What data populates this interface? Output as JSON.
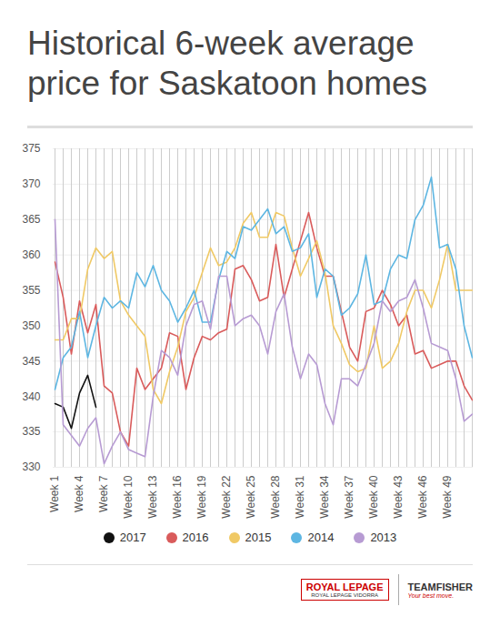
{
  "chart_data": {
    "type": "line",
    "title": "Historical 6-week average price for Saskatoon homes",
    "categories": [
      "Week 1",
      null,
      null,
      "Week 4",
      null,
      null,
      "Week 7",
      null,
      null,
      "Week 10",
      null,
      null,
      "Week 13",
      null,
      null,
      "Week 16",
      null,
      null,
      "Week 19",
      null,
      null,
      "Week 22",
      null,
      null,
      "Week 25",
      null,
      null,
      "Week 28",
      null,
      null,
      "Week 31",
      null,
      null,
      "Week 34",
      null,
      null,
      "Week 37",
      null,
      null,
      "Week 40",
      null,
      null,
      "Week 43",
      null,
      null,
      "Week 46",
      null,
      null,
      "Week 49",
      null,
      null,
      null
    ],
    "series": [
      {
        "name": "2017",
        "color": "#111111",
        "values": [
          339,
          338.5,
          335.5,
          340.5,
          343,
          338.5,
          null,
          null,
          null,
          null,
          null,
          null,
          null,
          null,
          null,
          null,
          null,
          null,
          null,
          null,
          null,
          null,
          null,
          null,
          null,
          null,
          null,
          null,
          null,
          null,
          null,
          null,
          null,
          null,
          null,
          null,
          null,
          null,
          null,
          null,
          null,
          null,
          null,
          null,
          null,
          null,
          null,
          null,
          null,
          null,
          null,
          null
        ]
      },
      {
        "name": "2016",
        "color": "#d95b5b",
        "values": [
          359,
          354,
          346,
          353.5,
          349,
          353,
          341.5,
          340.5,
          335,
          333,
          344,
          341,
          342.5,
          344,
          349,
          348.5,
          341,
          345.5,
          348.5,
          348,
          349,
          349.5,
          358,
          358.5,
          356.5,
          353.5,
          354,
          361.5,
          354,
          358,
          362,
          366,
          361,
          357,
          357,
          352,
          347,
          345,
          352,
          352.5,
          355,
          353,
          350,
          351.5,
          346,
          346.5,
          344,
          344.5,
          345,
          345,
          341.5,
          339.5
        ]
      },
      {
        "name": "2015",
        "color": "#f0c965",
        "values": [
          348,
          348,
          351,
          351,
          358,
          361,
          359.5,
          360.5,
          353.5,
          351.5,
          350,
          348.5,
          341,
          339,
          343.5,
          347,
          352,
          354,
          357.5,
          361,
          358.5,
          359,
          361,
          364.5,
          366,
          362.5,
          362.5,
          366,
          365.5,
          361,
          357,
          359.5,
          362,
          357.5,
          350,
          347.5,
          344.5,
          343.5,
          344,
          350,
          344,
          345,
          347.5,
          352,
          355,
          355,
          352.5,
          356.5,
          361.5,
          355,
          355,
          355
        ]
      },
      {
        "name": "2014",
        "color": "#5db6e2",
        "values": [
          341,
          345.5,
          347,
          352,
          345.5,
          350,
          354,
          352.5,
          353.5,
          352.5,
          357.5,
          355.5,
          358.5,
          355,
          353.5,
          350.5,
          352.5,
          355,
          350.5,
          350.5,
          356.5,
          360.5,
          359.5,
          364,
          363.5,
          365,
          366.5,
          363,
          364,
          360.5,
          361,
          363,
          354,
          358,
          357,
          351.5,
          352.5,
          354.5,
          360,
          353,
          353.5,
          358,
          360,
          359.5,
          365,
          367,
          371,
          361,
          361.5,
          358,
          350,
          345.5
        ]
      },
      {
        "name": "2013",
        "color": "#b79bd3",
        "values": [
          365,
          336,
          334.5,
          333,
          335.5,
          337,
          330.5,
          333,
          335,
          332.5,
          332,
          331.5,
          340,
          346.5,
          345.5,
          343,
          350,
          353,
          353.5,
          349.5,
          357,
          357,
          350,
          351,
          351.5,
          350,
          346,
          352,
          354.5,
          347,
          342.5,
          346,
          344.5,
          339,
          336,
          342.5,
          342.5,
          341.5,
          344.5,
          347.5,
          353.5,
          352,
          353.5,
          354,
          356.5,
          352.5,
          347.5,
          347,
          346.5,
          342.5,
          336.5,
          337.5
        ]
      }
    ],
    "ylim": [
      330,
      375
    ],
    "yticks": [
      330,
      335,
      340,
      345,
      350,
      355,
      360,
      365,
      370,
      375
    ],
    "grid": true,
    "legend": "bottom"
  },
  "footer": {
    "logos": [
      {
        "name": "ROYAL LEPAGE",
        "tagline": "ROYAL LEPAGE VIDORRA"
      },
      {
        "name": "TEAMFISHER",
        "tagline": "Your best move."
      }
    ]
  }
}
